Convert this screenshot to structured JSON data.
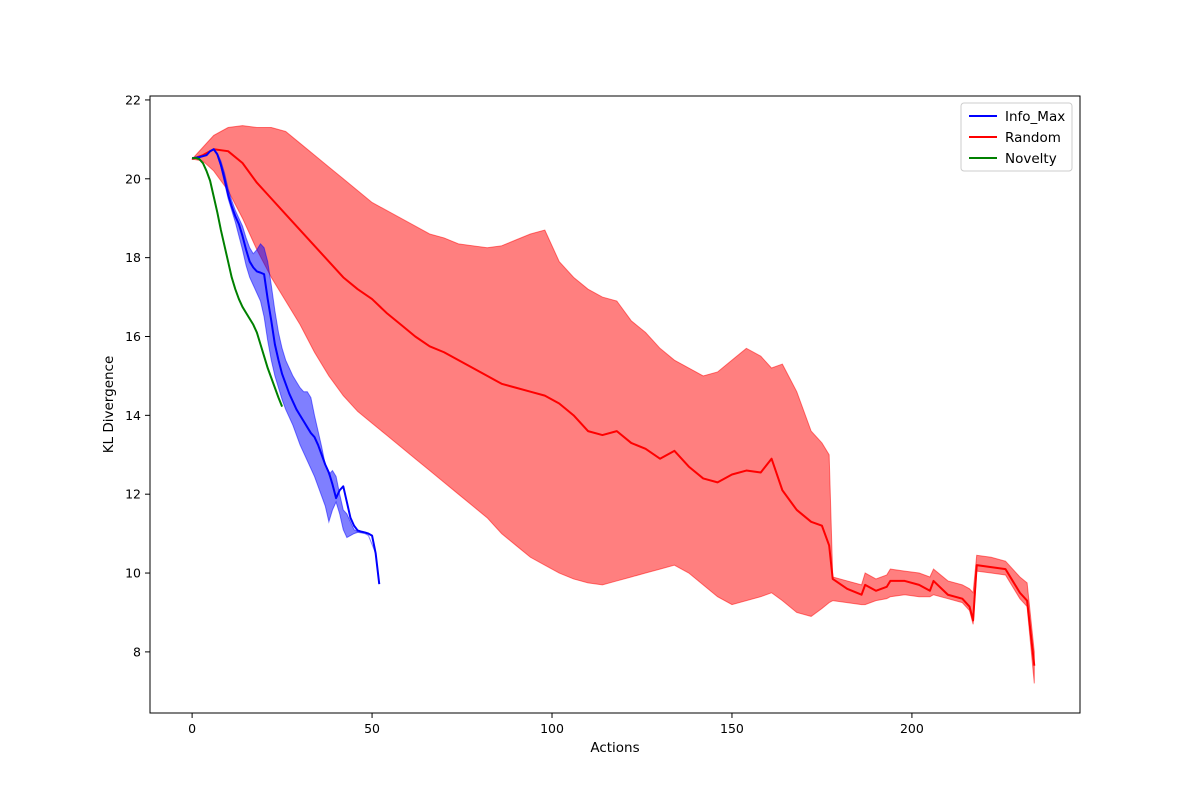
{
  "chart_data": {
    "type": "line",
    "title": "",
    "xlabel": "Actions",
    "ylabel": "KL Divergence",
    "xlim": [
      -11.7,
      246.7
    ],
    "ylim": [
      6.45,
      22.1
    ],
    "xticks": [
      0,
      50,
      100,
      150,
      200
    ],
    "yticks": [
      8,
      10,
      12,
      14,
      16,
      18,
      20,
      22
    ],
    "grid": false,
    "legend_position": "top-right",
    "series": [
      {
        "name": "Info_Max",
        "color": "#0000ff",
        "x": [
          0,
          2,
          4,
          5,
          6,
          7,
          8,
          9,
          10,
          11,
          12,
          13,
          14,
          15,
          16,
          17,
          18,
          19,
          20,
          21,
          22,
          23,
          24,
          25,
          26,
          27,
          28,
          29,
          30,
          31,
          32,
          33,
          34,
          35,
          36,
          37,
          38,
          39,
          40,
          41,
          42,
          43,
          44,
          45,
          46,
          47,
          48,
          49,
          50,
          51,
          52
        ],
        "mean": [
          20.52,
          20.55,
          20.6,
          20.7,
          20.75,
          20.62,
          20.35,
          20.0,
          19.6,
          19.3,
          19.05,
          18.85,
          18.55,
          18.2,
          17.9,
          17.75,
          17.65,
          17.62,
          17.58,
          16.95,
          16.4,
          15.8,
          15.4,
          15.05,
          14.8,
          14.55,
          14.35,
          14.15,
          14.0,
          13.85,
          13.7,
          13.55,
          13.45,
          13.25,
          13.0,
          12.75,
          12.55,
          12.25,
          11.9,
          12.1,
          12.2,
          11.8,
          11.4,
          11.2,
          11.08,
          11.05,
          11.03,
          11.0,
          10.95,
          10.5,
          9.72
        ],
        "lower": [
          20.52,
          20.55,
          20.6,
          20.7,
          20.75,
          20.6,
          20.3,
          19.9,
          19.5,
          19.2,
          18.9,
          18.55,
          18.2,
          17.8,
          17.5,
          17.3,
          17.1,
          16.9,
          16.5,
          15.9,
          15.4,
          15.0,
          14.7,
          14.4,
          14.15,
          13.95,
          13.75,
          13.5,
          13.25,
          13.05,
          12.85,
          12.65,
          12.45,
          12.2,
          11.95,
          11.7,
          11.3,
          11.6,
          11.8,
          11.5,
          11.1,
          10.9,
          10.95,
          11.0,
          11.03,
          11.02,
          11.0,
          10.95,
          10.5,
          9.72
        ],
        "upper": [
          20.52,
          20.55,
          20.6,
          20.7,
          20.75,
          20.65,
          20.45,
          20.15,
          19.75,
          19.45,
          19.2,
          19.0,
          18.8,
          18.5,
          18.25,
          18.1,
          18.2,
          18.35,
          18.25,
          17.9,
          17.3,
          16.65,
          16.1,
          15.7,
          15.4,
          15.2,
          15.0,
          14.85,
          14.7,
          14.6,
          14.6,
          14.45,
          14.0,
          13.6,
          13.2,
          12.75,
          12.5,
          12.6,
          12.45,
          12.0,
          11.6,
          11.5,
          11.3,
          11.1,
          11.05,
          11.03,
          11.0,
          10.95,
          10.5,
          9.72
        ],
        "x_band": [
          0,
          2,
          4,
          5,
          6,
          7,
          8,
          9,
          10,
          11,
          12,
          13,
          14,
          15,
          16,
          17,
          18,
          19,
          20,
          21,
          22,
          23,
          24,
          25,
          26,
          27,
          28,
          29,
          30,
          31,
          32,
          33,
          34,
          35,
          36,
          37,
          38,
          39,
          40,
          41,
          42,
          43,
          44,
          45,
          46,
          47,
          48,
          49,
          51,
          52
        ]
      },
      {
        "name": "Random",
        "color": "#ff0000",
        "x": [
          0,
          3,
          6,
          10,
          14,
          18,
          22,
          26,
          30,
          34,
          38,
          42,
          46,
          50,
          54,
          58,
          62,
          66,
          70,
          74,
          78,
          82,
          86,
          90,
          94,
          98,
          102,
          106,
          110,
          114,
          118,
          122,
          126,
          130,
          134,
          138,
          142,
          146,
          150,
          154,
          158,
          161,
          164,
          168,
          172,
          175,
          177,
          178,
          182,
          186,
          187,
          190,
          193,
          194,
          198,
          202,
          205,
          206,
          210,
          214,
          216,
          217,
          218,
          222,
          226,
          228,
          230,
          232,
          234
        ],
        "mean": [
          20.5,
          20.6,
          20.75,
          20.7,
          20.4,
          19.9,
          19.5,
          19.1,
          18.7,
          18.3,
          17.9,
          17.5,
          17.2,
          16.95,
          16.6,
          16.3,
          16.0,
          15.75,
          15.6,
          15.4,
          15.2,
          15.0,
          14.8,
          14.7,
          14.6,
          14.5,
          14.3,
          14.0,
          13.6,
          13.5,
          13.6,
          13.3,
          13.15,
          12.9,
          13.1,
          12.7,
          12.4,
          12.3,
          12.5,
          12.6,
          12.55,
          12.9,
          12.1,
          11.6,
          11.3,
          11.2,
          10.7,
          9.85,
          9.6,
          9.45,
          9.7,
          9.55,
          9.65,
          9.8,
          9.8,
          9.7,
          9.55,
          9.8,
          9.45,
          9.35,
          9.15,
          8.8,
          10.2,
          10.15,
          10.1,
          9.8,
          9.5,
          9.3,
          7.65
        ],
        "lower": [
          20.5,
          20.45,
          20.2,
          19.7,
          19.0,
          18.2,
          17.5,
          16.9,
          16.3,
          15.6,
          15.0,
          14.5,
          14.1,
          13.8,
          13.5,
          13.2,
          12.9,
          12.6,
          12.3,
          12.0,
          11.7,
          11.4,
          11.0,
          10.7,
          10.4,
          10.2,
          10.0,
          9.85,
          9.75,
          9.7,
          9.8,
          9.9,
          10.0,
          10.1,
          10.2,
          10.0,
          9.7,
          9.4,
          9.2,
          9.3,
          9.4,
          9.5,
          9.3,
          9.0,
          8.9,
          9.1,
          9.25,
          9.3,
          9.25,
          9.2,
          9.2,
          9.3,
          9.35,
          9.4,
          9.45,
          9.4,
          9.4,
          9.45,
          9.35,
          9.25,
          9.05,
          8.7,
          10.05,
          10.0,
          9.95,
          9.65,
          9.35,
          9.15,
          7.2
        ],
        "upper": [
          20.5,
          20.8,
          21.1,
          21.3,
          21.35,
          21.3,
          21.3,
          21.2,
          20.9,
          20.6,
          20.3,
          20.0,
          19.7,
          19.4,
          19.2,
          19.0,
          18.8,
          18.6,
          18.5,
          18.35,
          18.3,
          18.25,
          18.3,
          18.45,
          18.6,
          18.7,
          17.9,
          17.5,
          17.2,
          17.0,
          16.9,
          16.4,
          16.1,
          15.7,
          15.4,
          15.2,
          15.0,
          15.1,
          15.4,
          15.7,
          15.5,
          15.2,
          15.3,
          14.6,
          13.6,
          13.3,
          13.0,
          9.9,
          9.8,
          9.7,
          10.0,
          9.85,
          9.95,
          10.1,
          10.05,
          10.0,
          9.9,
          10.1,
          9.8,
          9.7,
          9.6,
          9.5,
          10.45,
          10.4,
          10.3,
          10.1,
          9.9,
          9.75,
          8.0
        ]
      },
      {
        "name": "Novelty",
        "color": "#008000",
        "x": [
          0,
          1,
          2,
          3,
          4,
          5,
          6,
          7,
          8,
          9,
          10,
          11,
          12,
          13,
          14,
          15,
          16,
          17,
          18,
          19,
          20,
          21,
          22,
          23,
          24,
          25
        ],
        "mean": [
          20.52,
          20.53,
          20.5,
          20.4,
          20.2,
          19.95,
          19.55,
          19.15,
          18.7,
          18.3,
          17.9,
          17.5,
          17.2,
          16.95,
          16.75,
          16.6,
          16.45,
          16.3,
          16.1,
          15.8,
          15.5,
          15.2,
          14.95,
          14.7,
          14.45,
          14.22
        ]
      }
    ]
  }
}
